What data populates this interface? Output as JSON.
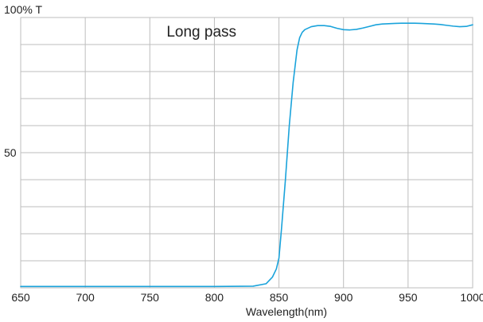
{
  "chart_data": {
    "type": "line",
    "title": "",
    "xlabel": "Wavelength(nm)",
    "ylabel": "100% T",
    "xlim": [
      650,
      1000
    ],
    "ylim": [
      0,
      100
    ],
    "x_ticks": [
      650,
      700,
      750,
      800,
      850,
      900,
      950,
      1000
    ],
    "y_ticks": [
      {
        "value": 50,
        "label": "50"
      }
    ],
    "grid": true,
    "annotations": [
      {
        "text": "Long pass",
        "x": 790,
        "y": 95
      }
    ],
    "series": [
      {
        "color": "#1aa3db",
        "x": [
          650,
          700,
          750,
          800,
          830,
          840,
          845,
          848,
          850,
          852,
          855,
          858,
          861,
          864,
          866,
          868,
          870,
          875,
          880,
          885,
          890,
          895,
          900,
          905,
          910,
          915,
          920,
          925,
          930,
          935,
          940,
          945,
          950,
          955,
          960,
          965,
          970,
          975,
          980,
          985,
          990,
          995,
          1000
        ],
        "y": [
          0.5,
          0.5,
          0.5,
          0.5,
          0.6,
          1.5,
          4,
          7,
          11,
          22,
          40,
          60,
          76,
          88,
          92.5,
          94.5,
          95.5,
          96.6,
          97,
          97,
          96.7,
          96,
          95.5,
          95.4,
          95.6,
          96.1,
          96.7,
          97.3,
          97.6,
          97.7,
          97.8,
          97.9,
          97.9,
          97.9,
          97.8,
          97.7,
          97.6,
          97.4,
          97.1,
          96.8,
          96.6,
          96.7,
          97.3
        ]
      }
    ]
  }
}
